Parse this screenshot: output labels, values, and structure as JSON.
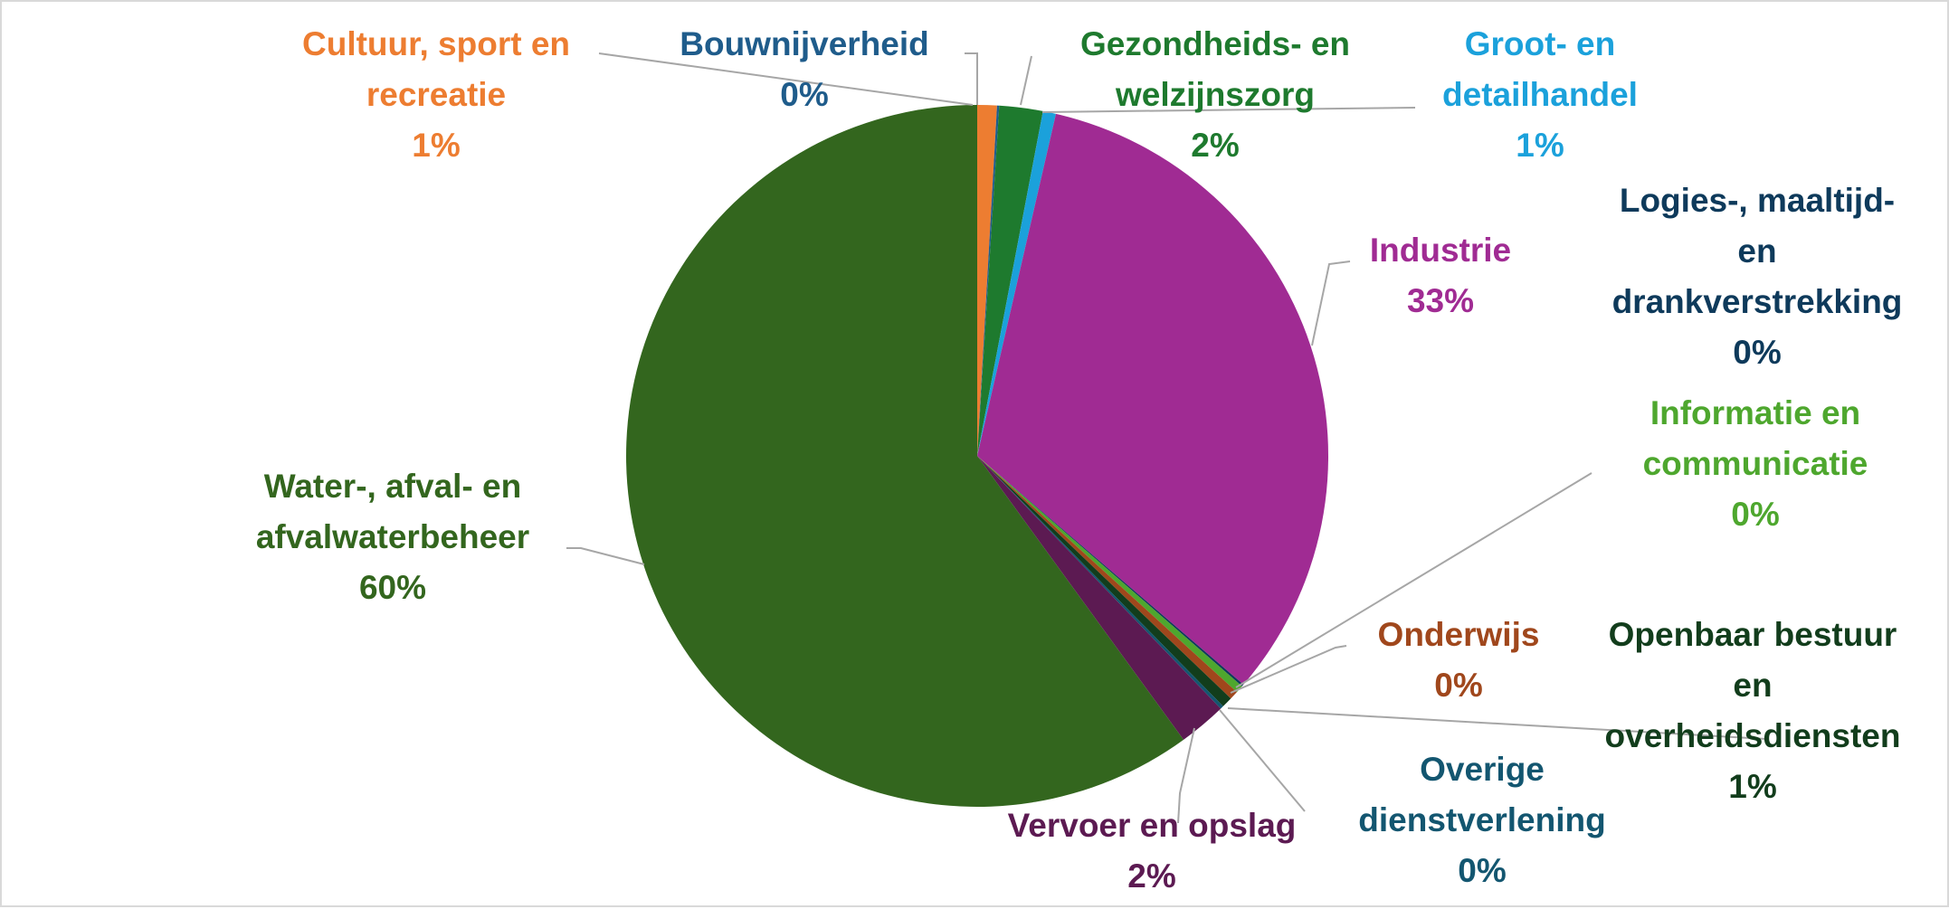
{
  "chart_data": {
    "type": "pie",
    "title": "",
    "legend": "none",
    "slices": [
      {
        "name": "Cultuur, sport en recreatie",
        "lines": [
          "Cultuur, sport en",
          "recreatie"
        ],
        "pct_label": "1%",
        "value": 0.9,
        "color": "#ED7D31"
      },
      {
        "name": "Bouwnijverheid",
        "lines": [
          "Bouwnijverheid"
        ],
        "pct_label": "0%",
        "value": 0.1,
        "color": "#1F5C8B"
      },
      {
        "name": "Gezondheids- en welzijnszorg",
        "lines": [
          "Gezondheids- en",
          "welzijnszorg"
        ],
        "pct_label": "2%",
        "value": 2.0,
        "color": "#1E7A2E"
      },
      {
        "name": "Groot- en detailhandel",
        "lines": [
          "Groot- en",
          "detailhandel"
        ],
        "pct_label": "1%",
        "value": 0.6,
        "color": "#1BA1DB"
      },
      {
        "name": "Industrie",
        "lines": [
          "Industrie"
        ],
        "pct_label": "33%",
        "value": 32.7,
        "color": "#A02B93"
      },
      {
        "name": "Logies-, maaltijd- en drankverstrekking",
        "lines": [
          "Logies-, maaltijd-",
          "en",
          "drankverstrekking"
        ],
        "pct_label": "0%",
        "value": 0.1,
        "color": "#0E3A5B"
      },
      {
        "name": "Informatie en communicatie",
        "lines": [
          "Informatie en",
          "communicatie"
        ],
        "pct_label": "0%",
        "value": 0.35,
        "color": "#4EA72E"
      },
      {
        "name": "Onderwijs",
        "lines": [
          "Onderwijs"
        ],
        "pct_label": "0%",
        "value": 0.4,
        "color": "#A0471C"
      },
      {
        "name": "Openbaar bestuur en overheidsdiensten",
        "lines": [
          "Openbaar bestuur",
          "en",
          "overheidsdiensten"
        ],
        "pct_label": "1%",
        "value": 0.5,
        "color": "#123D1C"
      },
      {
        "name": "Overige dienstverlening",
        "lines": [
          "Overige",
          "dienstverlening"
        ],
        "pct_label": "0%",
        "value": 0.15,
        "color": "#135670"
      },
      {
        "name": "Vervoer en opslag",
        "lines": [
          "Vervoer en opslag"
        ],
        "pct_label": "2%",
        "value": 2.2,
        "color": "#5C1A52"
      },
      {
        "name": "Water-, afval- en afvalwaterbeheer",
        "lines": [
          "Water-, afval- en",
          "afvalwaterbeheer"
        ],
        "pct_label": "60%",
        "value": 60.0,
        "color": "#33661E"
      }
    ]
  }
}
